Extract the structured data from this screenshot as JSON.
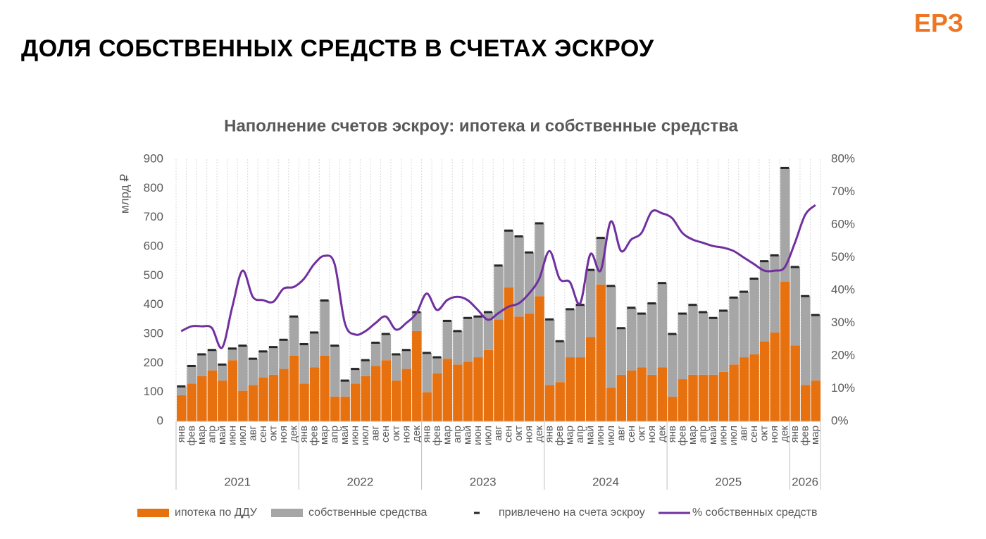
{
  "header": {
    "title": "ДОЛЯ СОБСТВЕННЫХ СРЕДСТВ В СЧЕТАХ ЭСКРОУ",
    "logo": "ЕРЗ"
  },
  "chart_data": {
    "type": "stacked_bar_line",
    "title": "Наполнение счетов эскроу: ипотека и собственные средства",
    "ylabel": "млрд ₽",
    "categories": [
      "янв",
      "фев",
      "мар",
      "апр",
      "май",
      "июн",
      "июл",
      "авг",
      "сен",
      "окт",
      "ноя",
      "дек",
      "янв",
      "фев",
      "мар",
      "апр",
      "май",
      "июн",
      "июл",
      "авг",
      "сен",
      "окт",
      "ноя",
      "дек",
      "янв",
      "фев",
      "мар",
      "апр",
      "май",
      "июн",
      "июл",
      "авг",
      "сен",
      "окт",
      "ноя",
      "дек",
      "янв",
      "фев",
      "мар",
      "апр",
      "май",
      "июн",
      "июл",
      "авг",
      "сен",
      "окт",
      "ноя",
      "дек",
      "янв",
      "фев",
      "мар",
      "апр",
      "май",
      "июн",
      "июл",
      "авг",
      "сен",
      "окт",
      "ноя",
      "дек",
      "янв",
      "фев",
      "мар"
    ],
    "years": [
      "2021",
      "2022",
      "2023",
      "2024",
      "2025",
      "2026"
    ],
    "ylim": [
      0,
      900
    ],
    "yticks": [
      0,
      100,
      200,
      300,
      400,
      500,
      600,
      700,
      800,
      900
    ],
    "y2lim": [
      0,
      80
    ],
    "y2ticks": [
      {
        "value": 0,
        "label": "0%"
      },
      {
        "value": 10,
        "label": "10%"
      },
      {
        "value": 20,
        "label": "20%"
      },
      {
        "value": 30,
        "label": "30%"
      },
      {
        "value": 40,
        "label": "40%"
      },
      {
        "value": 50,
        "label": "50%"
      },
      {
        "value": 60,
        "label": "60%"
      },
      {
        "value": 70,
        "label": "70%"
      },
      {
        "value": 80,
        "label": "80%"
      }
    ],
    "series": [
      {
        "name": "ипотека по ДДУ",
        "kind": "bar",
        "color": "#e8710f",
        "values": [
          90,
          130,
          155,
          175,
          140,
          210,
          105,
          125,
          150,
          160,
          180,
          225,
          130,
          185,
          225,
          85,
          85,
          130,
          155,
          190,
          210,
          140,
          180,
          310,
          100,
          165,
          215,
          195,
          205,
          220,
          245,
          350,
          460,
          360,
          370,
          430,
          125,
          135,
          220,
          220,
          290,
          470,
          115,
          160,
          175,
          185,
          160,
          185,
          85,
          145,
          160,
          160,
          160,
          170,
          195,
          220,
          230,
          275,
          305,
          480,
          260,
          125,
          140
        ]
      },
      {
        "name": "собственные средства",
        "kind": "bar",
        "color": "#a6a6a6",
        "values": [
          30,
          60,
          75,
          70,
          55,
          40,
          155,
          90,
          90,
          95,
          100,
          135,
          135,
          120,
          190,
          175,
          55,
          50,
          55,
          80,
          90,
          90,
          65,
          65,
          135,
          55,
          130,
          115,
          150,
          140,
          130,
          185,
          195,
          275,
          210,
          250,
          225,
          140,
          165,
          180,
          230,
          160,
          350,
          160,
          215,
          185,
          245,
          290,
          215,
          225,
          240,
          215,
          195,
          210,
          230,
          225,
          260,
          275,
          265,
          390,
          270,
          305,
          225
        ]
      },
      {
        "name": "привлечено на счета эскроу",
        "kind": "marker",
        "color": "#262626",
        "values": [
          120,
          190,
          230,
          245,
          195,
          250,
          260,
          215,
          240,
          255,
          280,
          360,
          265,
          305,
          415,
          260,
          140,
          180,
          210,
          270,
          300,
          230,
          245,
          375,
          235,
          220,
          345,
          310,
          355,
          360,
          375,
          535,
          655,
          635,
          580,
          680,
          350,
          275,
          385,
          400,
          520,
          630,
          465,
          320,
          390,
          370,
          405,
          475,
          300,
          370,
          400,
          375,
          355,
          380,
          425,
          445,
          490,
          550,
          570,
          870,
          530,
          430,
          365
        ]
      },
      {
        "name": "% собственных средств",
        "kind": "line",
        "axis": "y2",
        "color": "#7030a0",
        "values": [
          27.5,
          29,
          29,
          28.5,
          22.5,
          35,
          46,
          38,
          37,
          36.5,
          40.5,
          41,
          43.5,
          48,
          50.5,
          48,
          30,
          26.5,
          27.5,
          30,
          32,
          28,
          30,
          33,
          39,
          34,
          37,
          38,
          37,
          34,
          31,
          33,
          35,
          36,
          39,
          43.5,
          52,
          43.5,
          42.5,
          36,
          51,
          46,
          61,
          52,
          55.5,
          57.5,
          64,
          63.5,
          62,
          57.5,
          55.5,
          54.5,
          53.5,
          53,
          52,
          50,
          48,
          46,
          46,
          47,
          54.5,
          63,
          66
        ]
      }
    ],
    "grid": true
  }
}
